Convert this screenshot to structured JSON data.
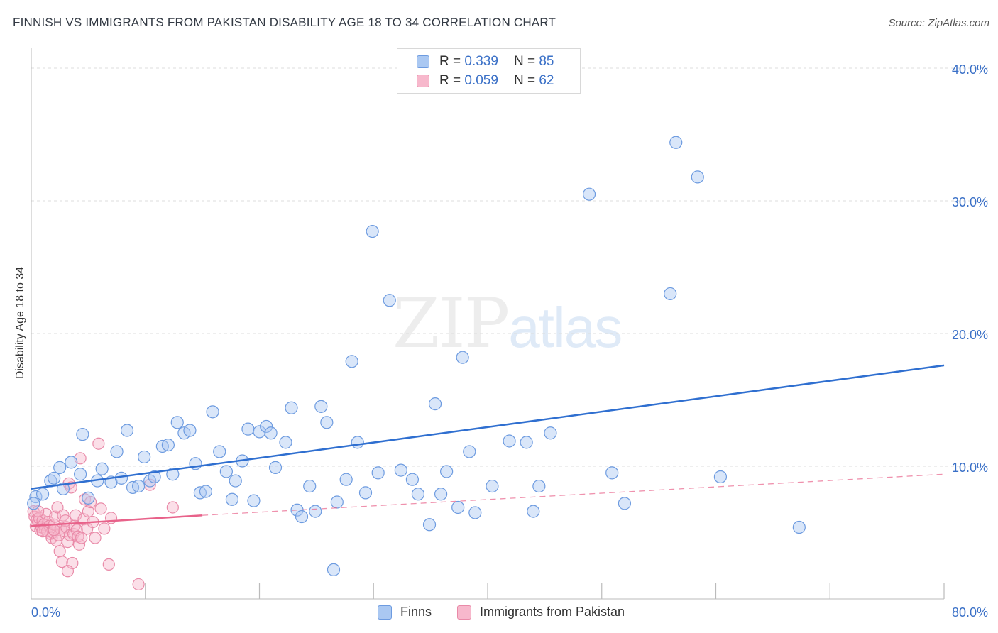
{
  "header": {
    "title": "FINNISH VS IMMIGRANTS FROM PAKISTAN DISABILITY AGE 18 TO 34 CORRELATION CHART",
    "source": "Source: ZipAtlas.com"
  },
  "watermark": {
    "part1": "ZIP",
    "part2": "atlas"
  },
  "legend_top": [
    {
      "r_label": "R =",
      "r_value": "0.339",
      "n_label": "N =",
      "n_value": "85"
    },
    {
      "r_label": "R =",
      "r_value": "0.059",
      "n_label": "N =",
      "n_value": "62"
    }
  ],
  "legend_bottom": [
    {
      "label": "Finns"
    },
    {
      "label": "Immigrants from Pakistan"
    }
  ],
  "colors": {
    "finns_fill": "#aac8f2",
    "finns_stroke": "#6d9be0",
    "finns_line": "#2f6fd0",
    "pak_fill": "#f7b8cc",
    "pak_stroke": "#e98aa8",
    "pak_line": "#e8628a",
    "tick_text": "#3a70c7",
    "grid": "#dddddd"
  },
  "chart_data": {
    "type": "scatter",
    "title": "FINNISH VS IMMIGRANTS FROM PAKISTAN DISABILITY AGE 18 TO 34 CORRELATION CHART",
    "xlabel": "",
    "ylabel": "Disability Age 18 to 34",
    "xlim": [
      0,
      80
    ],
    "ylim": [
      0,
      41.5
    ],
    "x_tick_labels": [
      {
        "value": 0,
        "label": "0.0%"
      },
      {
        "value": 80,
        "label": "80.0%"
      }
    ],
    "y_tick_labels": [
      {
        "value": 10,
        "label": "10.0%"
      },
      {
        "value": 20,
        "label": "20.0%"
      },
      {
        "value": 30,
        "label": "30.0%"
      },
      {
        "value": 40,
        "label": "40.0%"
      }
    ],
    "grid": true,
    "legend_placement": "top-center",
    "series": [
      {
        "name": "Finns",
        "R": 0.339,
        "N": 85,
        "trend": {
          "x0": 0,
          "y0": 8.3,
          "x1": 80,
          "y1": 17.6
        },
        "points": [
          [
            0.4,
            7.7
          ],
          [
            1.0,
            7.9
          ],
          [
            1.7,
            8.9
          ],
          [
            2.0,
            9.1
          ],
          [
            2.8,
            8.3
          ],
          [
            2.5,
            9.9
          ],
          [
            3.5,
            10.3
          ],
          [
            4.5,
            12.4
          ],
          [
            4.3,
            9.4
          ],
          [
            5.0,
            7.6
          ],
          [
            5.8,
            8.9
          ],
          [
            6.2,
            9.8
          ],
          [
            7.0,
            8.8
          ],
          [
            7.5,
            11.1
          ],
          [
            7.9,
            9.1
          ],
          [
            8.4,
            12.7
          ],
          [
            8.9,
            8.4
          ],
          [
            9.4,
            8.5
          ],
          [
            9.9,
            10.7
          ],
          [
            10.4,
            8.9
          ],
          [
            10.8,
            9.2
          ],
          [
            11.5,
            11.5
          ],
          [
            12.0,
            11.6
          ],
          [
            12.4,
            9.4
          ],
          [
            12.8,
            13.3
          ],
          [
            13.4,
            12.5
          ],
          [
            13.9,
            12.7
          ],
          [
            14.4,
            10.2
          ],
          [
            14.8,
            8.0
          ],
          [
            15.3,
            8.1
          ],
          [
            15.9,
            14.1
          ],
          [
            16.5,
            11.1
          ],
          [
            17.1,
            9.6
          ],
          [
            17.6,
            7.5
          ],
          [
            17.9,
            8.9
          ],
          [
            18.5,
            10.4
          ],
          [
            19.0,
            12.8
          ],
          [
            19.5,
            7.4
          ],
          [
            20.0,
            12.6
          ],
          [
            20.6,
            13.0
          ],
          [
            21.0,
            12.5
          ],
          [
            21.4,
            9.9
          ],
          [
            22.3,
            11.8
          ],
          [
            22.8,
            14.4
          ],
          [
            23.3,
            6.7
          ],
          [
            23.7,
            6.2
          ],
          [
            24.4,
            8.5
          ],
          [
            24.9,
            6.6
          ],
          [
            25.4,
            14.5
          ],
          [
            25.9,
            13.3
          ],
          [
            26.5,
            2.2
          ],
          [
            26.8,
            7.3
          ],
          [
            27.6,
            9.0
          ],
          [
            28.1,
            17.9
          ],
          [
            28.6,
            11.8
          ],
          [
            29.3,
            8.0
          ],
          [
            29.9,
            27.7
          ],
          [
            30.4,
            9.5
          ],
          [
            31.4,
            22.5
          ],
          [
            32.4,
            9.7
          ],
          [
            33.4,
            9.0
          ],
          [
            33.9,
            7.9
          ],
          [
            34.9,
            5.6
          ],
          [
            35.4,
            14.7
          ],
          [
            35.9,
            7.9
          ],
          [
            36.4,
            9.6
          ],
          [
            37.4,
            6.9
          ],
          [
            37.8,
            18.2
          ],
          [
            38.4,
            11.1
          ],
          [
            38.9,
            6.5
          ],
          [
            40.4,
            8.5
          ],
          [
            41.9,
            11.9
          ],
          [
            43.4,
            11.8
          ],
          [
            44.0,
            6.6
          ],
          [
            44.5,
            8.5
          ],
          [
            45.5,
            12.5
          ],
          [
            48.9,
            30.5
          ],
          [
            50.9,
            9.5
          ],
          [
            52.0,
            7.2
          ],
          [
            56.0,
            23.0
          ],
          [
            56.5,
            34.4
          ],
          [
            58.4,
            31.8
          ],
          [
            60.4,
            9.2
          ],
          [
            67.3,
            5.4
          ],
          [
            0.2,
            7.2
          ]
        ]
      },
      {
        "name": "Immigrants from Pakistan",
        "R": 0.059,
        "N": 62,
        "trend": {
          "x0": 0,
          "y0": 5.5,
          "x1": 15,
          "y1": 6.3,
          "dashed_to_x": 80,
          "dashed_to_y": 9.4
        },
        "points": [
          [
            0.2,
            6.6
          ],
          [
            0.3,
            6.2
          ],
          [
            0.4,
            5.5
          ],
          [
            0.5,
            6.0
          ],
          [
            0.6,
            5.8
          ],
          [
            0.7,
            6.1
          ],
          [
            0.8,
            5.2
          ],
          [
            0.9,
            5.4
          ],
          [
            1.0,
            5.9
          ],
          [
            1.1,
            5.6
          ],
          [
            1.2,
            5.3
          ],
          [
            1.3,
            6.4
          ],
          [
            1.4,
            5.1
          ],
          [
            1.5,
            5.8
          ],
          [
            1.6,
            5.5
          ],
          [
            1.7,
            4.9
          ],
          [
            1.8,
            4.6
          ],
          [
            1.9,
            5.0
          ],
          [
            2.0,
            5.6
          ],
          [
            2.1,
            6.2
          ],
          [
            2.2,
            4.4
          ],
          [
            2.3,
            6.9
          ],
          [
            2.4,
            4.8
          ],
          [
            2.5,
            3.6
          ],
          [
            2.6,
            5.3
          ],
          [
            2.7,
            2.8
          ],
          [
            2.8,
            6.3
          ],
          [
            2.9,
            5.1
          ],
          [
            3.0,
            5.9
          ],
          [
            3.1,
            5.4
          ],
          [
            3.2,
            4.3
          ],
          [
            3.3,
            8.7
          ],
          [
            3.4,
            4.8
          ],
          [
            3.5,
            8.4
          ],
          [
            3.6,
            2.7
          ],
          [
            3.7,
            4.9
          ],
          [
            3.8,
            5.5
          ],
          [
            3.9,
            6.3
          ],
          [
            4.0,
            5.2
          ],
          [
            4.1,
            4.7
          ],
          [
            4.2,
            4.1
          ],
          [
            4.3,
            10.6
          ],
          [
            4.4,
            4.6
          ],
          [
            4.6,
            6.0
          ],
          [
            4.7,
            7.5
          ],
          [
            4.9,
            5.3
          ],
          [
            5.0,
            6.6
          ],
          [
            5.2,
            7.3
          ],
          [
            5.4,
            5.8
          ],
          [
            5.6,
            4.6
          ],
          [
            5.9,
            11.7
          ],
          [
            6.1,
            6.8
          ],
          [
            6.4,
            5.3
          ],
          [
            6.8,
            2.6
          ],
          [
            7.0,
            6.1
          ],
          [
            9.4,
            1.1
          ],
          [
            10.4,
            8.6
          ],
          [
            12.4,
            6.9
          ],
          [
            3.2,
            2.1
          ],
          [
            1.0,
            5.1
          ],
          [
            2.0,
            5.2
          ],
          [
            0.6,
            6.6
          ]
        ]
      }
    ]
  }
}
